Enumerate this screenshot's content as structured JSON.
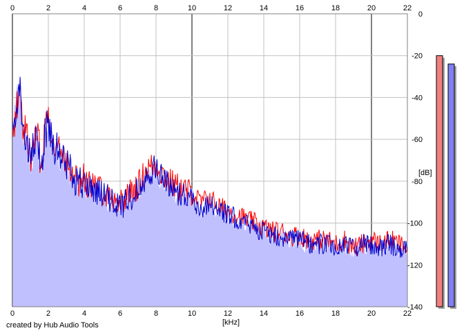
{
  "footer": "created by Hub Audio Tools",
  "chart_data": {
    "type": "area",
    "xlabel": "[kHz]",
    "ylabel": "[dB]",
    "xlim": [
      0,
      22
    ],
    "ylim": [
      -140,
      0
    ],
    "grid": true,
    "x_ticks": [
      "0",
      "2",
      "4",
      "6",
      "8",
      "10",
      "12",
      "14",
      "16",
      "18",
      "20",
      "22"
    ],
    "y_ticks": [
      "0",
      "-20",
      "-40",
      "-60",
      "-80",
      "-100",
      "-120",
      "-140"
    ],
    "x_tick_values": [
      0,
      2,
      4,
      6,
      8,
      10,
      12,
      14,
      16,
      18,
      20,
      22
    ],
    "y_tick_values": [
      0,
      -20,
      -40,
      -60,
      -80,
      -100,
      -120,
      -140
    ],
    "series": [
      {
        "color": "#ff0000",
        "x": [
          0,
          0.2,
          0.4,
          0.6,
          0.8,
          1.0,
          1.2,
          1.4,
          1.6,
          1.8,
          2.0,
          2.3,
          2.6,
          3.0,
          3.3,
          3.6,
          4.0,
          4.5,
          5.0,
          5.5,
          6.0,
          6.5,
          7.0,
          7.5,
          8.0,
          8.5,
          9.0,
          9.5,
          10.0,
          10.5,
          11.0,
          11.5,
          12.0,
          12.5,
          13.0,
          13.5,
          14.0,
          14.5,
          15.0,
          15.5,
          16.0,
          16.5,
          17.0,
          17.5,
          18.0,
          18.5,
          19.0,
          19.5,
          20.0,
          20.5,
          21.0,
          21.5,
          22.0
        ],
        "values": [
          -56,
          -46,
          -38,
          -52,
          -60,
          -68,
          -62,
          -58,
          -72,
          -56,
          -48,
          -60,
          -66,
          -70,
          -72,
          -78,
          -80,
          -82,
          -84,
          -88,
          -90,
          -86,
          -82,
          -74,
          -72,
          -78,
          -82,
          -84,
          -86,
          -90,
          -88,
          -92,
          -94,
          -96,
          -98,
          -100,
          -102,
          -104,
          -104,
          -106,
          -106,
          -108,
          -108,
          -108,
          -110,
          -108,
          -112,
          -110,
          -108,
          -110,
          -108,
          -110,
          -112
        ]
      },
      {
        "color": "#0000cc",
        "x": [
          0,
          0.2,
          0.4,
          0.6,
          0.8,
          1.0,
          1.2,
          1.4,
          1.6,
          1.8,
          2.0,
          2.3,
          2.6,
          3.0,
          3.3,
          3.6,
          4.0,
          4.5,
          5.0,
          5.5,
          6.0,
          6.5,
          7.0,
          7.5,
          8.0,
          8.5,
          9.0,
          9.5,
          10.0,
          10.5,
          11.0,
          11.5,
          12.0,
          12.5,
          13.0,
          13.5,
          14.0,
          14.5,
          15.0,
          15.5,
          16.0,
          16.5,
          17.0,
          17.5,
          18.0,
          18.5,
          19.0,
          19.5,
          20.0,
          20.5,
          21.0,
          21.5,
          22.0
        ],
        "values": [
          -58,
          -44,
          -34,
          -54,
          -64,
          -70,
          -64,
          -60,
          -74,
          -58,
          -52,
          -62,
          -68,
          -72,
          -74,
          -80,
          -82,
          -84,
          -86,
          -90,
          -92,
          -88,
          -84,
          -76,
          -74,
          -80,
          -84,
          -86,
          -88,
          -94,
          -90,
          -94,
          -96,
          -98,
          -100,
          -102,
          -104,
          -106,
          -106,
          -108,
          -108,
          -110,
          -110,
          -110,
          -112,
          -110,
          -112,
          -110,
          -110,
          -112,
          -110,
          -112,
          -112
        ]
      }
    ],
    "fill_color": "#c0c0ff",
    "level_meters": [
      {
        "color": "#f08080",
        "top_db": -20
      },
      {
        "color": "#8080f0",
        "top_db": -24
      }
    ]
  }
}
